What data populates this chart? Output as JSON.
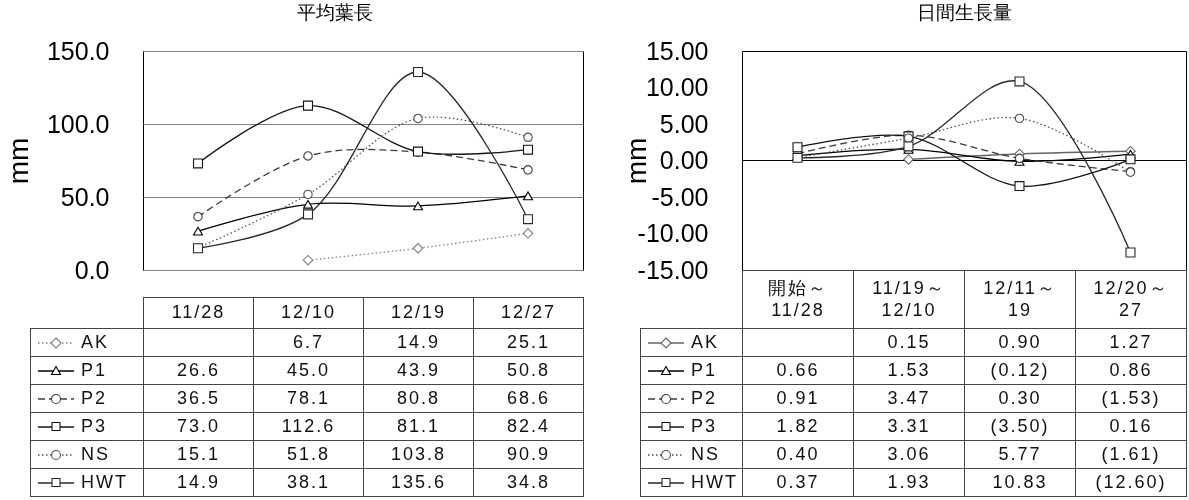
{
  "chart_data": [
    {
      "type": "line",
      "title": "平均葉長",
      "ylabel": "mm",
      "categories": [
        "11/28",
        "12/10",
        "12/19",
        "12/27"
      ],
      "ylim": [
        0,
        150
      ],
      "yticks": [
        {
          "value": 0,
          "label": "0.0"
        },
        {
          "value": 50,
          "label": "50.0"
        },
        {
          "value": 100,
          "label": "100.0"
        },
        {
          "value": 150,
          "label": "150.0"
        }
      ],
      "grid": "y",
      "legend": "bottom",
      "series": [
        {
          "name": "AK",
          "color": "#808080",
          "marker": "diamond",
          "line_style": "dotted",
          "values": [
            null,
            6.7,
            14.9,
            25.1
          ],
          "value_labels": [
            null,
            "6.7",
            "14.9",
            "25.1"
          ]
        },
        {
          "name": "P1",
          "color": "#000000",
          "marker": "triangle",
          "line_style": "solid",
          "values": [
            26.6,
            45.0,
            43.9,
            50.8
          ],
          "value_labels": [
            "26.6",
            "45.0",
            "43.9",
            "50.8"
          ]
        },
        {
          "name": "P2",
          "color": "#3c3c3c",
          "marker": "circle",
          "line_style": "dashed",
          "values": [
            36.5,
            78.1,
            80.8,
            68.6
          ],
          "value_labels": [
            "36.5",
            "78.1",
            "80.8",
            "68.6"
          ]
        },
        {
          "name": "P3",
          "color": "#141414",
          "marker": "square",
          "line_style": "solid",
          "values": [
            73.0,
            112.6,
            81.1,
            82.4
          ],
          "value_labels": [
            "73.0",
            "112.6",
            "81.1",
            "82.4"
          ]
        },
        {
          "name": "NS",
          "color": "#505050",
          "marker": "circle",
          "line_style": "dotted",
          "values": [
            15.1,
            51.8,
            103.8,
            90.9
          ],
          "value_labels": [
            "15.1",
            "51.8",
            "103.8",
            "90.9"
          ]
        },
        {
          "name": "HWT",
          "color": "#282828",
          "marker": "square",
          "line_style": "solid",
          "values": [
            14.9,
            38.1,
            135.6,
            34.8
          ],
          "value_labels": [
            "14.9",
            "38.1",
            "135.6",
            "34.8"
          ]
        }
      ]
    },
    {
      "type": "line",
      "title": "日間生長量",
      "ylabel": "mm",
      "categories": [
        "開始～11/28",
        "11/19～12/10",
        "12/11～19",
        "12/20～27"
      ],
      "ylim": [
        -15,
        15
      ],
      "yticks": [
        {
          "value": -15,
          "label": "-15.00"
        },
        {
          "value": -10,
          "label": "-10.00"
        },
        {
          "value": -5,
          "label": "-5.00"
        },
        {
          "value": 0,
          "label": "0.00"
        },
        {
          "value": 5,
          "label": "5.00"
        },
        {
          "value": 10,
          "label": "10.00"
        },
        {
          "value": 15,
          "label": "15.00"
        }
      ],
      "legend": "bottom",
      "ref_lines": [
        {
          "axis": "y",
          "value": 0
        }
      ],
      "series": [
        {
          "name": "AK",
          "color": "#646464",
          "marker": "diamond",
          "line_style": "solid",
          "values": [
            null,
            0.15,
            0.9,
            1.27
          ],
          "value_labels": [
            null,
            "0.15",
            "0.90",
            "1.27"
          ]
        },
        {
          "name": "P1",
          "color": "#000000",
          "marker": "triangle",
          "line_style": "solid",
          "values": [
            0.66,
            1.53,
            -0.12,
            0.86
          ],
          "value_labels": [
            "0.66",
            "1.53",
            "(0.12)",
            "0.86"
          ]
        },
        {
          "name": "P2",
          "color": "#3c3c3c",
          "marker": "circle",
          "line_style": "dashed",
          "values": [
            0.91,
            3.47,
            0.3,
            -1.53
          ],
          "value_labels": [
            "0.91",
            "3.47",
            "0.30",
            "(1.53)"
          ]
        },
        {
          "name": "P3",
          "color": "#141414",
          "marker": "square",
          "line_style": "solid",
          "values": [
            1.82,
            3.31,
            -3.5,
            0.16
          ],
          "value_labels": [
            "1.82",
            "3.31",
            "(3.50)",
            "0.16"
          ]
        },
        {
          "name": "NS",
          "color": "#505050",
          "marker": "circle",
          "line_style": "dotted",
          "values": [
            0.4,
            3.06,
            5.77,
            -1.61
          ],
          "value_labels": [
            "0.40",
            "3.06",
            "5.77",
            "(1.61)"
          ]
        },
        {
          "name": "HWT",
          "color": "#282828",
          "marker": "square",
          "line_style": "solid",
          "values": [
            0.37,
            1.93,
            10.83,
            -12.6
          ],
          "value_labels": [
            "0.37",
            "1.93",
            "10.83",
            "(12.60)"
          ]
        }
      ]
    }
  ]
}
